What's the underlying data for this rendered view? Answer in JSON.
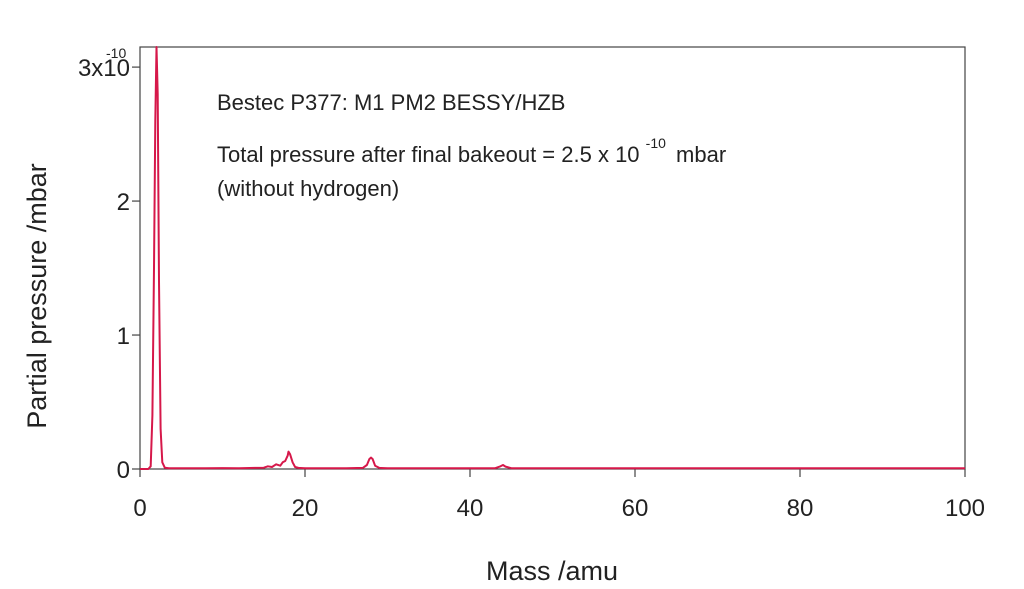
{
  "chart_data": {
    "type": "line",
    "xlabel": "Mass /amu",
    "ylabel": "Partial pressure /mbar",
    "xlim": [
      0,
      100
    ],
    "ylim": [
      0,
      3.15
    ],
    "x_ticks": [
      0,
      20,
      40,
      60,
      80,
      100
    ],
    "x_tick_labels": [
      "0",
      "20",
      "40",
      "60",
      "80",
      "100"
    ],
    "y_ticks": [
      0,
      1,
      2,
      3
    ],
    "y_tick_labels": [
      "0",
      "1",
      "2",
      "3x10"
    ],
    "y_scale_exponent": "-10",
    "grid": false,
    "line_color": "#d6184a",
    "annotations": {
      "line1": "Bestec P377: M1 PM2 BESSY/HZB",
      "line2_prefix": "Total pressure after final bakeout = 2.5 x 10",
      "line2_exponent": "-10",
      "line2_suffix": "mbar",
      "line3": "(without hydrogen)"
    },
    "series": [
      {
        "x": [
          0,
          1.0,
          1.3,
          1.5,
          1.7,
          1.85,
          2.0,
          2.15,
          2.3,
          2.5,
          2.7,
          3.0,
          3.5,
          5,
          8,
          10,
          12,
          14,
          15,
          15.5,
          16,
          16.5,
          17,
          17.3,
          17.6,
          17.9,
          18.0,
          18.2,
          18.5,
          18.8,
          19.2,
          20,
          22,
          25,
          27,
          27.5,
          27.8,
          28.0,
          28.2,
          28.5,
          29,
          30,
          35,
          40,
          43,
          43.7,
          44.0,
          44.3,
          45,
          50,
          60,
          70,
          80,
          90,
          100
        ],
        "y": [
          0,
          0,
          0.02,
          0.4,
          1.5,
          2.6,
          3.15,
          2.8,
          1.4,
          0.3,
          0.05,
          0.01,
          0.005,
          0.006,
          0.005,
          0.007,
          0.006,
          0.008,
          0.01,
          0.02,
          0.015,
          0.035,
          0.025,
          0.05,
          0.06,
          0.1,
          0.13,
          0.11,
          0.05,
          0.015,
          0.008,
          0.006,
          0.006,
          0.006,
          0.008,
          0.03,
          0.075,
          0.085,
          0.075,
          0.025,
          0.008,
          0.006,
          0.005,
          0.005,
          0.005,
          0.02,
          0.03,
          0.018,
          0.006,
          0.005,
          0.005,
          0.005,
          0.005,
          0.005,
          0.005
        ]
      }
    ]
  }
}
